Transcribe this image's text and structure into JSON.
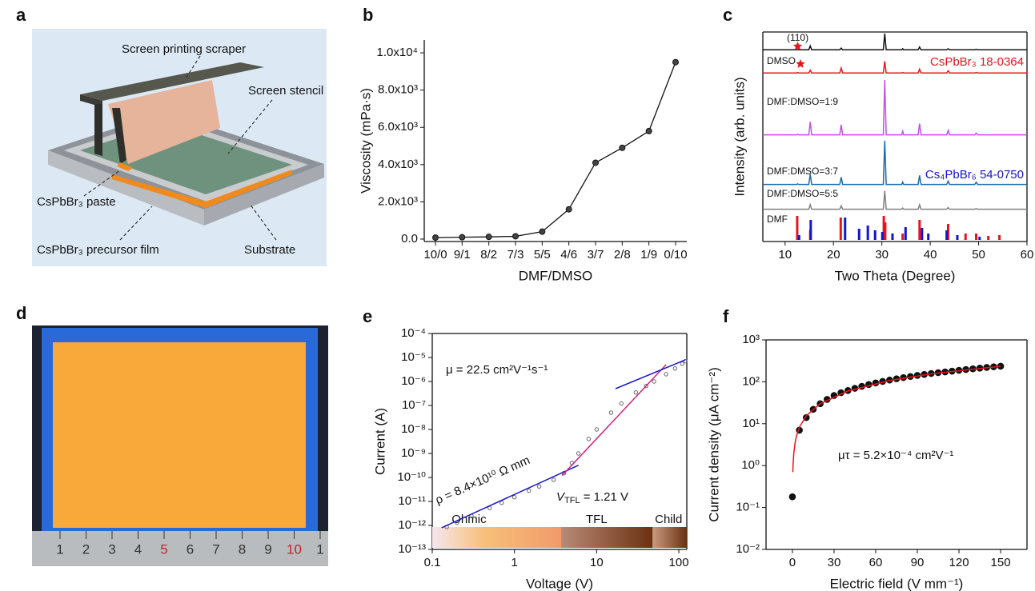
{
  "panel_labels": [
    "a",
    "b",
    "c",
    "d",
    "e",
    "f"
  ],
  "schematic": {
    "labels": [
      "Screen printing scraper",
      "Screen stencil",
      "CsPbBr₃ paste",
      "CsPbBr₃ precursor film",
      "Substrate"
    ]
  },
  "photo": {
    "ruler_labels": [
      "1",
      "2",
      "3",
      "4",
      "5",
      "6",
      "7",
      "8",
      "9",
      "10",
      "1"
    ]
  },
  "chart_data": [
    {
      "type": "line",
      "x_label": "DMF/DMSO",
      "y_label": "Viscosity (mPa·s)",
      "color": "#111111",
      "categories": [
        "10/0",
        "9/1",
        "8/2",
        "7/3",
        "5/5",
        "4/6",
        "3/7",
        "2/8",
        "1/9",
        "0/10"
      ],
      "values": [
        80,
        100,
        120,
        150,
        400,
        1600,
        4100,
        4900,
        5800,
        9500
      ],
      "ylim": [
        -130,
        10690
      ],
      "yticks": [
        {
          "value": 0,
          "label": "0.0"
        },
        {
          "value": 2000,
          "label": "2.0x10³"
        },
        {
          "value": 4000,
          "label": "4.0x10³"
        },
        {
          "value": 6000,
          "label": "6.0x10³"
        },
        {
          "value": 8000,
          "label": "8.0x10³"
        },
        {
          "value": 10000,
          "label": "1.0x10⁴"
        }
      ]
    },
    {
      "type": "spectrum",
      "x_label": "Two Theta (Degree)",
      "y_label": "Intensity (arb. units)",
      "annotation": "(110)",
      "xlim": [
        5.4,
        60
      ],
      "xticks": [
        10,
        20,
        30,
        40,
        50,
        60
      ],
      "series": [
        {
          "name": "DMSO",
          "color": "#111111",
          "x": [
            5,
            12.4,
            12.6,
            12.8,
            14.9,
            15.2,
            15.5,
            21.3,
            21.6,
            21.9,
            30.3,
            30.6,
            30.9,
            34.1,
            34.3,
            34.5,
            37.5,
            37.8,
            38.1,
            43.4,
            43.7,
            44.0,
            49.2,
            49.5,
            49.8,
            60
          ],
          "values": [
            1,
            1,
            1,
            1,
            1,
            8,
            1,
            1,
            4,
            1,
            1,
            30,
            1,
            1,
            3,
            1,
            1,
            6,
            1,
            1,
            3,
            1,
            1,
            2,
            1,
            1
          ]
        },
        {
          "name": "DMF:DMSO=1:9",
          "color": "#e8141c",
          "x": [
            5,
            12.4,
            12.6,
            12.8,
            14.9,
            15.2,
            15.5,
            21.3,
            21.6,
            21.9,
            30.3,
            30.6,
            30.9,
            34.1,
            34.3,
            34.5,
            37.5,
            37.8,
            38.1,
            43.4,
            43.7,
            44.0,
            49.2,
            49.5,
            49.8,
            60
          ],
          "values": [
            1,
            1,
            2,
            1,
            1,
            6,
            1,
            1,
            10,
            1,
            1,
            22,
            1,
            1,
            2,
            1,
            1,
            8,
            1,
            1,
            5,
            1,
            1,
            2,
            1,
            1
          ]
        },
        {
          "name": "DMF:DMSO=3:7",
          "color": "#c84ee0",
          "x": [
            5,
            12.4,
            12.6,
            12.8,
            14.9,
            15.2,
            15.5,
            21.3,
            21.6,
            21.9,
            30.3,
            30.6,
            30.9,
            34.1,
            34.3,
            34.5,
            37.5,
            37.8,
            38.1,
            43.4,
            43.7,
            44.0,
            49.2,
            49.5,
            49.8,
            60
          ],
          "values": [
            2,
            2,
            3,
            2,
            2,
            25,
            2,
            2,
            20,
            2,
            2,
            100,
            2,
            2,
            8,
            2,
            2,
            22,
            2,
            2,
            10,
            2,
            2,
            5,
            2,
            2
          ]
        },
        {
          "name": "DMF:DMSO=5:5",
          "color": "#1a6aa8",
          "x": [
            5,
            12.4,
            12.6,
            12.8,
            14.9,
            15.2,
            15.5,
            21.3,
            21.6,
            21.9,
            30.3,
            30.6,
            30.9,
            34.1,
            34.3,
            34.5,
            37.5,
            37.8,
            38.1,
            43.4,
            43.7,
            44.0,
            49.2,
            49.5,
            49.8,
            60
          ],
          "values": [
            2,
            2,
            3,
            2,
            2,
            20,
            2,
            2,
            15,
            2,
            2,
            80,
            2,
            2,
            6,
            2,
            2,
            18,
            2,
            2,
            8,
            2,
            2,
            6,
            2,
            2
          ]
        },
        {
          "name": "DMF",
          "color": "#808080",
          "x": [
            5,
            12.4,
            12.6,
            12.8,
            14.9,
            15.2,
            15.5,
            21.3,
            21.6,
            21.9,
            30.3,
            30.6,
            30.9,
            34.1,
            34.3,
            34.5,
            37.5,
            37.8,
            38.1,
            43.4,
            43.7,
            44.0,
            49.2,
            49.5,
            49.8,
            60
          ],
          "values": [
            2,
            2,
            2,
            2,
            2,
            10,
            2,
            2,
            8,
            2,
            2,
            35,
            2,
            2,
            4,
            2,
            2,
            10,
            2,
            2,
            5,
            2,
            2,
            3,
            2,
            2
          ]
        }
      ],
      "sticks": [
        {
          "name": "CsPbBr₃ 18-0364",
          "color": "#e8141c",
          "x": [
            12.5,
            15.2,
            21.5,
            30.4,
            30.7,
            34.3,
            37.8,
            43.7,
            47.3,
            49.5,
            52,
            54.3
          ],
          "values": [
            30,
            12,
            28,
            30,
            22,
            8,
            25,
            20,
            8,
            8,
            5,
            6
          ]
        },
        {
          "name": "Cs₄PbBr₆ 54-0750",
          "color": "#1414d0",
          "x": [
            12.9,
            15.3,
            22.4,
            25.3,
            27.1,
            28.6,
            30.1,
            32.2,
            34.9,
            38.3,
            39.6,
            43.4,
            45.6,
            50.2
          ],
          "values": [
            6,
            25,
            28,
            14,
            18,
            12,
            10,
            8,
            16,
            15,
            8,
            12,
            6,
            4
          ]
        }
      ]
    },
    {
      "type": "scatter",
      "x_label": "Voltage (V)",
      "y_label": "Current (A)",
      "xlog": true,
      "ylog": true,
      "point_color": "#666666",
      "filled": false,
      "xlim": [
        0.1,
        125
      ],
      "xticks": [
        0.1,
        1,
        10,
        100
      ],
      "ylim": [
        1e-13,
        0.0001
      ],
      "yticks": [
        {
          "value": 1e-13,
          "label": "10⁻¹³"
        },
        {
          "value": 1e-12,
          "label": "10⁻¹²"
        },
        {
          "value": 1e-11,
          "label": "10⁻¹¹"
        },
        {
          "value": 1e-10,
          "label": "10⁻¹⁰"
        },
        {
          "value": 1e-09,
          "label": "10⁻⁹"
        },
        {
          "value": 1e-08,
          "label": "10⁻⁸"
        },
        {
          "value": 1e-07,
          "label": "10⁻⁷"
        },
        {
          "value": 1e-06,
          "label": "10⁻⁶"
        },
        {
          "value": 1e-05,
          "label": "10⁻⁵"
        },
        {
          "value": 0.0001,
          "label": "10⁻⁴"
        }
      ],
      "x": [
        0.15,
        0.2,
        0.3,
        0.5,
        0.7,
        1,
        1.5,
        2,
        3,
        4,
        5,
        6,
        8,
        10,
        15,
        20,
        30,
        40,
        50,
        70,
        90,
        110,
        120
      ],
      "values": [
        8.7e-13,
        1.3e-12,
        2.5e-12,
        5.3e-12,
        8.8e-12,
        1.5e-11,
        2.8e-11,
        4.2e-11,
        8e-11,
        1.5e-10,
        4e-10,
        1e-09,
        4e-09,
        1e-08,
        5e-08,
        1.2e-07,
        3.5e-07,
        6.5e-07,
        1e-06,
        2e-06,
        3.5e-06,
        5.5e-06,
        7e-06
      ],
      "fits": [
        {
          "color": "#1a1acc",
          "x": [
            0.13,
            6
          ],
          "values": [
            8e-13,
            3.2e-10
          ]
        },
        {
          "color": "#d4207a",
          "x": [
            3.8,
            70
          ],
          "values": [
            1.2e-10,
            5e-06
          ]
        },
        {
          "color": "#1a1acc",
          "x": [
            17,
            120
          ],
          "values": [
            5e-07,
            8e-06
          ]
        }
      ],
      "regions": [
        {
          "name": "Ohmic",
          "x": [
            0.1,
            3.7
          ]
        },
        {
          "name": "TFL",
          "x": [
            3.7,
            48
          ]
        },
        {
          "name": "Child",
          "x": [
            48,
            125
          ]
        }
      ],
      "mobility": "μ = 22.5 cm²V⁻¹s⁻¹",
      "resistivity": "ρ = 8.4×10¹⁰ Ω mm",
      "vtfl": {
        "symbol": "V",
        "subscript": "TFL",
        "text": " = 1.21 V"
      }
    },
    {
      "type": "scatter",
      "x_label": "Electric field (V mm⁻¹)",
      "y_label": "Current density (μA cm⁻²)",
      "ylog": true,
      "point_color": "#111111",
      "filled": true,
      "xlim": [
        -19,
        169
      ],
      "xticks": [
        0,
        30,
        60,
        90,
        120,
        150
      ],
      "ylim": [
        0.01,
        1000
      ],
      "yticks": [
        {
          "value": 0.01,
          "label": "10⁻²"
        },
        {
          "value": 0.1,
          "label": "10⁻¹"
        },
        {
          "value": 1,
          "label": "10⁰"
        },
        {
          "value": 10,
          "label": "10¹"
        },
        {
          "value": 100,
          "label": "10²"
        },
        {
          "value": 1000,
          "label": "10³"
        }
      ],
      "x": [
        0,
        5,
        10,
        15,
        20,
        25,
        30,
        35,
        40,
        45,
        50,
        55,
        60,
        65,
        70,
        75,
        80,
        85,
        90,
        95,
        100,
        105,
        110,
        115,
        120,
        125,
        130,
        135,
        140,
        145,
        150
      ],
      "values": [
        0.18,
        7,
        14,
        22,
        30,
        38,
        47,
        55,
        62,
        70,
        78,
        86,
        94,
        102,
        110,
        118,
        126,
        134,
        142,
        150,
        158,
        165,
        172,
        180,
        188,
        196,
        204,
        212,
        220,
        228,
        235
      ],
      "fits": [
        {
          "color": "#e8141c",
          "x": [
            0.3,
            0.5,
            1,
            2,
            3,
            5,
            10,
            20,
            40,
            70,
            100,
            150
          ],
          "values": [
            0.7,
            1.1,
            2,
            3.6,
            5.2,
            8.2,
            15.5,
            30,
            60,
            107,
            155,
            235
          ]
        }
      ],
      "mutau": "μτ = 5.2×10⁻⁴ cm²V⁻¹"
    }
  ]
}
